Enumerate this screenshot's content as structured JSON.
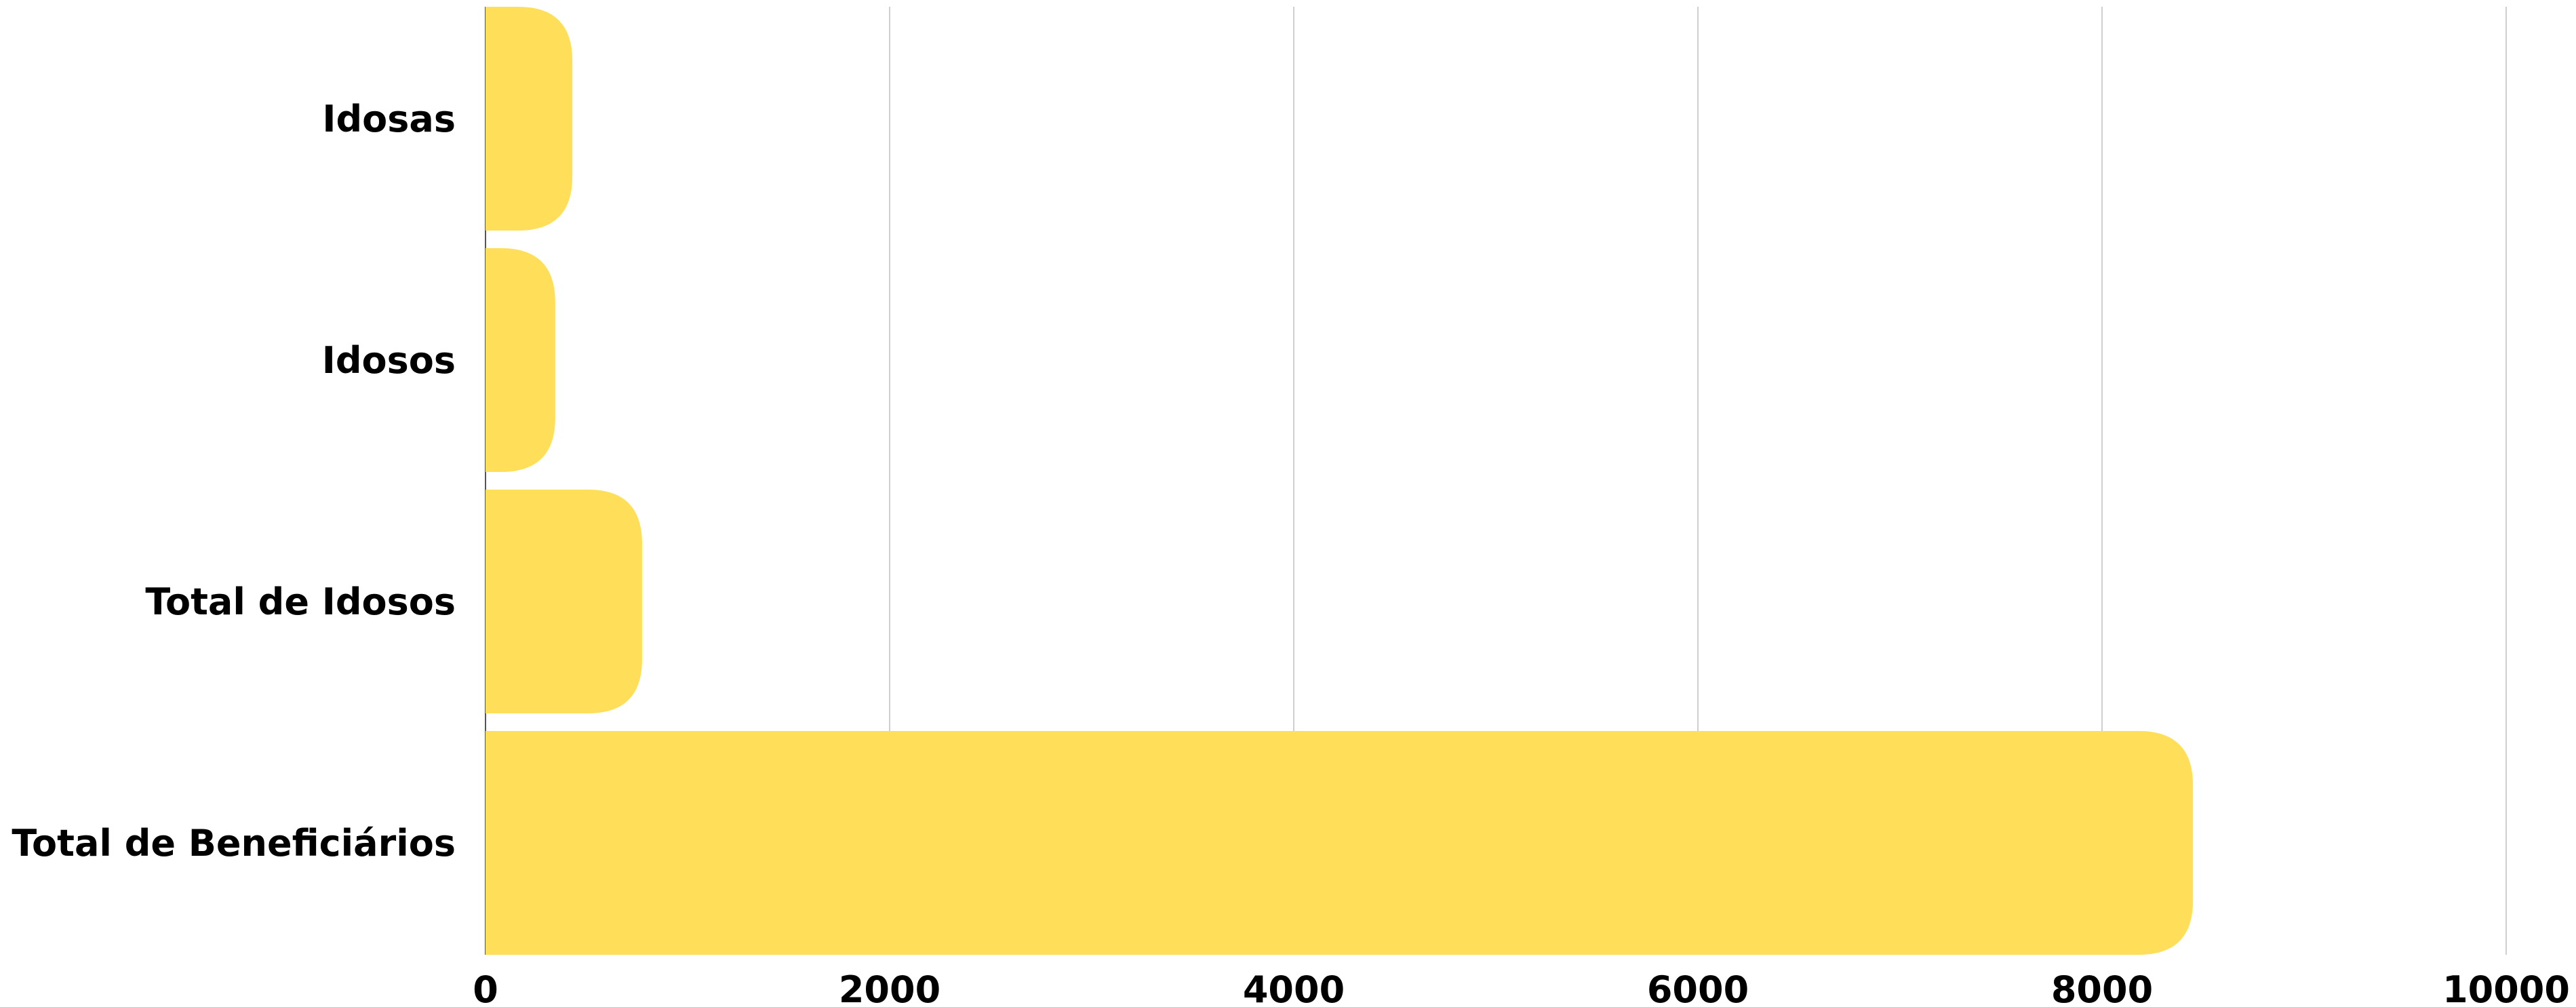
{
  "chart_data": {
    "type": "bar",
    "orientation": "horizontal",
    "categories": [
      "Idosas",
      "Idosos",
      "Total de Idosos",
      "Total de Beneficiários"
    ],
    "values": [
      430,
      345,
      775,
      8450
    ],
    "title": "",
    "xlabel": "",
    "ylabel": "",
    "xlim": [
      0,
      10000
    ],
    "xticks": [
      0,
      2000,
      4000,
      6000,
      8000,
      10000
    ],
    "xtick_labels": [
      "0",
      "2000",
      "4000",
      "6000",
      "8000",
      "10000"
    ],
    "grid": "vertical",
    "legend": "none",
    "colors": {
      "bar": "#FFDE59",
      "grid": "#CFCFCF",
      "text": "#000000"
    }
  }
}
